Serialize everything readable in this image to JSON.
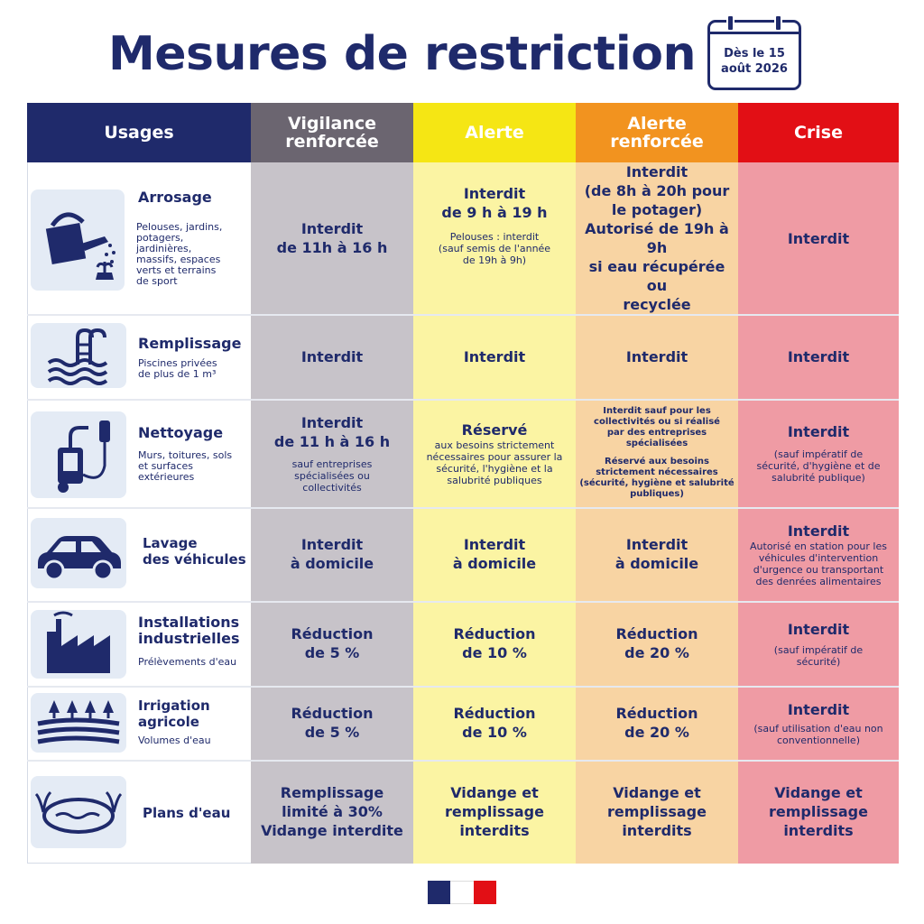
{
  "title": "Mesures de restriction",
  "date_badge": {
    "line1": "Dès le 15",
    "line2": "août 2026"
  },
  "headers": {
    "usages": "Usages",
    "vigilance": [
      "Vigilance",
      "renforcée"
    ],
    "alerte": "Alerte",
    "alerte_renforcee": [
      "Alerte",
      "renforcée"
    ],
    "crise": "Crise"
  },
  "colors": {
    "header_usages": "#1f2a6b",
    "header_vigilance": "#6b6570",
    "header_alerte": "#f5e614",
    "header_alerte_renforcee": "#f2931f",
    "header_crise": "#e20f15",
    "col_vigilance": "#c7c3c9",
    "col_alerte": "#fbf4a3",
    "col_alerte_renforcee": "#f8d4a3",
    "col_crise": "#ef9ba4",
    "navy": "#1f2a6b"
  },
  "rows": [
    {
      "icon": "watering-can-icon",
      "name": "Arrosage",
      "desc": [
        "Pelouses, jardins,",
        "potagers,",
        "jardinières,",
        "massifs, espaces",
        "verts et terrains",
        "de sport"
      ],
      "vigilance": {
        "bold": [
          "Interdit",
          "de 11h à 16 h"
        ]
      },
      "alerte": {
        "bold": [
          "Interdit",
          "de 9 h à 19 h"
        ],
        "small": [
          "Pelouses : interdit",
          "(sauf semis de l'année",
          "de 19h à 9h)"
        ]
      },
      "alerte_renforcee": {
        "bold": [
          "Interdit"
        ],
        "bold2": [
          "(de 8h à 20h pour",
          "le potager)"
        ],
        "bold3": [
          "Autorisé de 19h à 9h",
          "si eau récupérée ou",
          "recyclée"
        ]
      },
      "crise": {
        "bold": [
          "Interdit"
        ]
      }
    },
    {
      "icon": "pool-icon",
      "name": "Remplissage",
      "desc": [
        "Piscines privées",
        "de plus de 1 m³"
      ],
      "vigilance": {
        "bold": [
          "Interdit"
        ]
      },
      "alerte": {
        "bold": [
          "Interdit"
        ]
      },
      "alerte_renforcee": {
        "bold": [
          "Interdit"
        ]
      },
      "crise": {
        "bold": [
          "Interdit"
        ]
      }
    },
    {
      "icon": "pressure-washer-icon",
      "name": "Nettoyage",
      "desc": [
        "Murs, toitures, sols",
        "et surfaces",
        "extérieures"
      ],
      "vigilance": {
        "bold": [
          "Interdit",
          "de 11 h à 16 h"
        ],
        "small": [
          "sauf entreprises",
          "spécialisées ou",
          "collectivités"
        ]
      },
      "alerte": {
        "bold": [
          "Réservé"
        ],
        "small": [
          "aux besoins strictement",
          "nécessaires pour assurer la",
          "sécurité, l'hygiène et la",
          "salubrité publiques"
        ]
      },
      "alerte_renforcee": {
        "xs1": [
          "Interdit sauf pour les",
          "collectivités ou si réalisé",
          "par des entreprises",
          "spécialisées"
        ],
        "xs2": [
          "Réservé aux besoins",
          "strictement nécessaires",
          "(sécurité, hygiène et salubrité",
          "publiques)"
        ]
      },
      "crise": {
        "bold": [
          "Interdit"
        ],
        "small": [
          "(sauf impératif de",
          "sécurité, d'hygiène et de",
          "salubrité publique)"
        ]
      }
    },
    {
      "icon": "car-icon",
      "name": "Lavage des véhicules",
      "name_lines": [
        "Lavage",
        "des véhicules"
      ],
      "desc": [],
      "vigilance": {
        "bold": [
          "Interdit",
          "à domicile"
        ]
      },
      "alerte": {
        "bold": [
          "Interdit",
          "à domicile"
        ]
      },
      "alerte_renforcee": {
        "bold": [
          "Interdit",
          "à domicile"
        ]
      },
      "crise": {
        "bold": [
          "Interdit"
        ],
        "small": [
          "Autorisé en station pour les",
          "véhicules d'intervention",
          "d'urgence ou transportant",
          "des denrées alimentaires"
        ]
      }
    },
    {
      "icon": "factory-icon",
      "name": "Installations industrielles",
      "name_lines": [
        "Installations",
        "industrielles"
      ],
      "desc": [
        "Prélèvements d'eau"
      ],
      "vigilance": {
        "bold": [
          "Réduction",
          "de 5 %"
        ]
      },
      "alerte": {
        "bold": [
          "Réduction",
          "de 10 %"
        ]
      },
      "alerte_renforcee": {
        "bold": [
          "Réduction",
          "de 20 %"
        ]
      },
      "crise": {
        "bold": [
          "Interdit"
        ],
        "small": [
          "(sauf impératif de",
          "sécurité)"
        ]
      }
    },
    {
      "icon": "field-icon",
      "name": "Irrigation agricole",
      "name_lines": [
        "Irrigation",
        "agricole"
      ],
      "desc": [
        "Volumes d'eau"
      ],
      "vigilance": {
        "bold": [
          "Réduction",
          "de 5 %"
        ]
      },
      "alerte": {
        "bold": [
          "Réduction",
          "de 10 %"
        ]
      },
      "alerte_renforcee": {
        "bold": [
          "Réduction",
          "de 20 %"
        ]
      },
      "crise": {
        "bold": [
          "Interdit"
        ],
        "small": [
          "(sauf utilisation d'eau non",
          "conventionnelle)"
        ]
      }
    },
    {
      "icon": "pond-icon",
      "name": "Plans d'eau",
      "desc": [],
      "vigilance": {
        "bold": [
          "Remplissage",
          "limité à 30%",
          "Vidange interdite"
        ]
      },
      "alerte": {
        "bold": [
          "Vidange et",
          "remplissage",
          "interdits"
        ]
      },
      "alerte_renforcee": {
        "bold": [
          "Vidange et",
          "remplissage",
          "interdits"
        ]
      },
      "crise": {
        "bold": [
          "Vidange et",
          "remplissage",
          "interdits"
        ]
      }
    }
  ]
}
